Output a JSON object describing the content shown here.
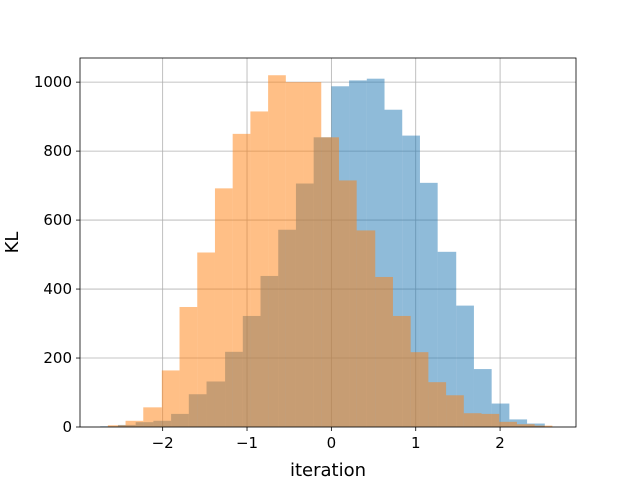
{
  "chart_data": {
    "type": "histogram",
    "title": "",
    "xlabel": "iteration",
    "ylabel": "KL",
    "xlim": [
      -2.98,
      2.9
    ],
    "ylim": [
      0,
      1070
    ],
    "grid": true,
    "xticks": [
      -2,
      -1,
      0,
      1,
      2
    ],
    "xtick_labels": [
      "−2",
      "−1",
      "0",
      "1",
      "2"
    ],
    "yticks": [
      0,
      200,
      400,
      600,
      800,
      1000
    ],
    "ytick_labels": [
      "0",
      "200",
      "400",
      "600",
      "800",
      "1000"
    ],
    "series": [
      {
        "color": "#1f77b4",
        "opacity": 0.5,
        "bins": [
          {
            "x0": -2.74,
            "x1": -2.53,
            "count": 2
          },
          {
            "x0": -2.53,
            "x1": -2.32,
            "count": 6
          },
          {
            "x0": -2.32,
            "x1": -2.11,
            "count": 14
          },
          {
            "x0": -2.11,
            "x1": -1.9,
            "count": 18
          },
          {
            "x0": -1.9,
            "x1": -1.69,
            "count": 38
          },
          {
            "x0": -1.69,
            "x1": -1.48,
            "count": 95
          },
          {
            "x0": -1.48,
            "x1": -1.26,
            "count": 132
          },
          {
            "x0": -1.26,
            "x1": -1.05,
            "count": 218
          },
          {
            "x0": -1.05,
            "x1": -0.84,
            "count": 322
          },
          {
            "x0": -0.84,
            "x1": -0.63,
            "count": 438
          },
          {
            "x0": -0.63,
            "x1": -0.42,
            "count": 572
          },
          {
            "x0": -0.42,
            "x1": -0.21,
            "count": 706
          },
          {
            "x0": -0.21,
            "x1": 0.0,
            "count": 840
          },
          {
            "x0": 0.0,
            "x1": 0.21,
            "count": 988
          },
          {
            "x0": 0.21,
            "x1": 0.42,
            "count": 1005
          },
          {
            "x0": 0.42,
            "x1": 0.63,
            "count": 1010
          },
          {
            "x0": 0.63,
            "x1": 0.84,
            "count": 920
          },
          {
            "x0": 0.84,
            "x1": 1.05,
            "count": 845
          },
          {
            "x0": 1.05,
            "x1": 1.26,
            "count": 708
          },
          {
            "x0": 1.26,
            "x1": 1.48,
            "count": 508
          },
          {
            "x0": 1.48,
            "x1": 1.69,
            "count": 352
          },
          {
            "x0": 1.69,
            "x1": 1.9,
            "count": 168
          },
          {
            "x0": 1.9,
            "x1": 2.11,
            "count": 68
          },
          {
            "x0": 2.11,
            "x1": 2.32,
            "count": 22
          },
          {
            "x0": 2.32,
            "x1": 2.53,
            "count": 10
          }
        ]
      },
      {
        "color": "#ff7f0e",
        "opacity": 0.5,
        "bins": [
          {
            "x0": -2.65,
            "x1": -2.44,
            "count": 5
          },
          {
            "x0": -2.44,
            "x1": -2.23,
            "count": 18
          },
          {
            "x0": -2.23,
            "x1": -2.01,
            "count": 57
          },
          {
            "x0": -2.01,
            "x1": -1.8,
            "count": 164
          },
          {
            "x0": -1.8,
            "x1": -1.59,
            "count": 348
          },
          {
            "x0": -1.59,
            "x1": -1.38,
            "count": 506
          },
          {
            "x0": -1.38,
            "x1": -1.17,
            "count": 692
          },
          {
            "x0": -1.17,
            "x1": -0.96,
            "count": 850
          },
          {
            "x0": -0.96,
            "x1": -0.75,
            "count": 915
          },
          {
            "x0": -0.75,
            "x1": -0.54,
            "count": 1020
          },
          {
            "x0": -0.54,
            "x1": -0.33,
            "count": 1000
          },
          {
            "x0": -0.33,
            "x1": -0.12,
            "count": 1000
          },
          {
            "x0": -0.12,
            "x1": 0.09,
            "count": 840
          },
          {
            "x0": 0.09,
            "x1": 0.3,
            "count": 715
          },
          {
            "x0": 0.3,
            "x1": 0.52,
            "count": 570
          },
          {
            "x0": 0.52,
            "x1": 0.73,
            "count": 435
          },
          {
            "x0": 0.73,
            "x1": 0.94,
            "count": 322
          },
          {
            "x0": 0.94,
            "x1": 1.15,
            "count": 217
          },
          {
            "x0": 1.15,
            "x1": 1.36,
            "count": 130
          },
          {
            "x0": 1.36,
            "x1": 1.57,
            "count": 92
          },
          {
            "x0": 1.57,
            "x1": 1.78,
            "count": 40
          },
          {
            "x0": 1.78,
            "x1": 1.99,
            "count": 38
          },
          {
            "x0": 1.99,
            "x1": 2.2,
            "count": 15
          },
          {
            "x0": 2.2,
            "x1": 2.41,
            "count": 8
          },
          {
            "x0": 2.41,
            "x1": 2.62,
            "count": 4
          }
        ]
      }
    ]
  }
}
